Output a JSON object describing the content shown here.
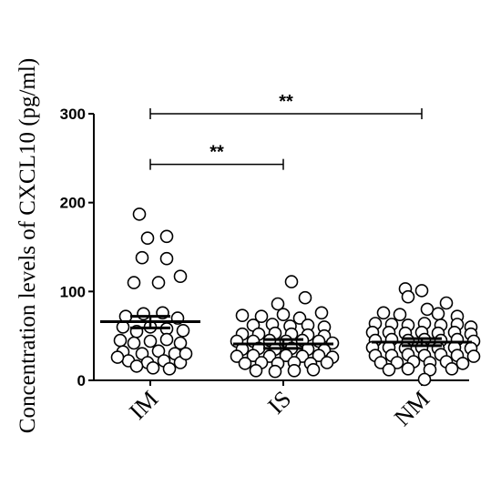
{
  "chart_data": {
    "type": "scatter",
    "ylabel": "Concentration levels of CXCL10 (pg/ml)",
    "xlabel": "",
    "ylim": [
      0,
      300
    ],
    "yticks": [
      0,
      100,
      200,
      300
    ],
    "grid": false,
    "categories": [
      "IM",
      "IS",
      "NM"
    ],
    "groups": [
      {
        "name": "IM",
        "mean": 66,
        "sem_low": 59,
        "sem_high": 72,
        "points": [
          {
            "dx": -0.08,
            "y": 187
          },
          {
            "dx": -0.02,
            "y": 160
          },
          {
            "dx": 0.12,
            "y": 162
          },
          {
            "dx": -0.06,
            "y": 138
          },
          {
            "dx": 0.12,
            "y": 137
          },
          {
            "dx": 0.22,
            "y": 117
          },
          {
            "dx": -0.12,
            "y": 110
          },
          {
            "dx": 0.06,
            "y": 110
          },
          {
            "dx": -0.18,
            "y": 72
          },
          {
            "dx": -0.05,
            "y": 75
          },
          {
            "dx": 0.09,
            "y": 76
          },
          {
            "dx": 0.2,
            "y": 70
          },
          {
            "dx": -0.2,
            "y": 60
          },
          {
            "dx": -0.1,
            "y": 55
          },
          {
            "dx": 0.0,
            "y": 60
          },
          {
            "dx": 0.12,
            "y": 58
          },
          {
            "dx": 0.24,
            "y": 56
          },
          {
            "dx": -0.22,
            "y": 45
          },
          {
            "dx": -0.12,
            "y": 42
          },
          {
            "dx": 0.0,
            "y": 44
          },
          {
            "dx": 0.12,
            "y": 46
          },
          {
            "dx": 0.22,
            "y": 42
          },
          {
            "dx": -0.2,
            "y": 32
          },
          {
            "dx": -0.06,
            "y": 30
          },
          {
            "dx": 0.06,
            "y": 33
          },
          {
            "dx": 0.18,
            "y": 30
          },
          {
            "dx": -0.16,
            "y": 22
          },
          {
            "dx": -0.02,
            "y": 20
          },
          {
            "dx": 0.1,
            "y": 22
          },
          {
            "dx": 0.22,
            "y": 20
          },
          {
            "dx": -0.24,
            "y": 26
          },
          {
            "dx": 0.02,
            "y": 14
          },
          {
            "dx": 0.14,
            "y": 13
          },
          {
            "dx": -0.1,
            "y": 16
          },
          {
            "dx": 0.26,
            "y": 30
          }
        ]
      },
      {
        "name": "IS",
        "mean": 41,
        "sem_low": 36,
        "sem_high": 46,
        "points": [
          {
            "dx": 0.06,
            "y": 111
          },
          {
            "dx": -0.04,
            "y": 86
          },
          {
            "dx": 0.16,
            "y": 93
          },
          {
            "dx": 0.28,
            "y": 76
          },
          {
            "dx": -0.3,
            "y": 73
          },
          {
            "dx": -0.16,
            "y": 72
          },
          {
            "dx": 0.0,
            "y": 74
          },
          {
            "dx": 0.12,
            "y": 70
          },
          {
            "dx": -0.22,
            "y": 62
          },
          {
            "dx": -0.08,
            "y": 63
          },
          {
            "dx": 0.05,
            "y": 61
          },
          {
            "dx": 0.18,
            "y": 62
          },
          {
            "dx": 0.3,
            "y": 60
          },
          {
            "dx": -0.3,
            "y": 52
          },
          {
            "dx": -0.18,
            "y": 52
          },
          {
            "dx": -0.06,
            "y": 53
          },
          {
            "dx": 0.06,
            "y": 52
          },
          {
            "dx": 0.18,
            "y": 51
          },
          {
            "dx": 0.3,
            "y": 50
          },
          {
            "dx": -0.34,
            "y": 44
          },
          {
            "dx": -0.22,
            "y": 44
          },
          {
            "dx": -0.1,
            "y": 45
          },
          {
            "dx": 0.02,
            "y": 44
          },
          {
            "dx": 0.14,
            "y": 45
          },
          {
            "dx": 0.26,
            "y": 44
          },
          {
            "dx": 0.36,
            "y": 42
          },
          {
            "dx": -0.3,
            "y": 35
          },
          {
            "dx": -0.18,
            "y": 36
          },
          {
            "dx": -0.06,
            "y": 35
          },
          {
            "dx": 0.06,
            "y": 36
          },
          {
            "dx": 0.18,
            "y": 35
          },
          {
            "dx": 0.3,
            "y": 34
          },
          {
            "dx": -0.34,
            "y": 27
          },
          {
            "dx": -0.22,
            "y": 28
          },
          {
            "dx": -0.1,
            "y": 27
          },
          {
            "dx": 0.02,
            "y": 28
          },
          {
            "dx": 0.14,
            "y": 27
          },
          {
            "dx": 0.26,
            "y": 28
          },
          {
            "dx": 0.36,
            "y": 26
          },
          {
            "dx": -0.28,
            "y": 19
          },
          {
            "dx": -0.16,
            "y": 20
          },
          {
            "dx": -0.04,
            "y": 19
          },
          {
            "dx": 0.08,
            "y": 20
          },
          {
            "dx": 0.2,
            "y": 19
          },
          {
            "dx": 0.32,
            "y": 20
          },
          {
            "dx": -0.2,
            "y": 11
          },
          {
            "dx": -0.06,
            "y": 10
          },
          {
            "dx": 0.08,
            "y": 11
          },
          {
            "dx": 0.22,
            "y": 12
          }
        ]
      },
      {
        "name": "NM",
        "mean": 43,
        "sem_low": 39,
        "sem_high": 47,
        "points": [
          {
            "dx": -0.12,
            "y": 103
          },
          {
            "dx": 0.0,
            "y": 101
          },
          {
            "dx": -0.1,
            "y": 94
          },
          {
            "dx": 0.18,
            "y": 87
          },
          {
            "dx": 0.04,
            "y": 80
          },
          {
            "dx": -0.28,
            "y": 76
          },
          {
            "dx": -0.16,
            "y": 74
          },
          {
            "dx": 0.12,
            "y": 75
          },
          {
            "dx": 0.26,
            "y": 72
          },
          {
            "dx": -0.34,
            "y": 64
          },
          {
            "dx": -0.22,
            "y": 63
          },
          {
            "dx": -0.1,
            "y": 62
          },
          {
            "dx": 0.02,
            "y": 64
          },
          {
            "dx": 0.14,
            "y": 62
          },
          {
            "dx": 0.26,
            "y": 63
          },
          {
            "dx": 0.36,
            "y": 60
          },
          {
            "dx": -0.36,
            "y": 54
          },
          {
            "dx": -0.24,
            "y": 54
          },
          {
            "dx": -0.12,
            "y": 53
          },
          {
            "dx": 0.0,
            "y": 54
          },
          {
            "dx": 0.12,
            "y": 53
          },
          {
            "dx": 0.24,
            "y": 54
          },
          {
            "dx": 0.36,
            "y": 52
          },
          {
            "dx": -0.34,
            "y": 45
          },
          {
            "dx": -0.22,
            "y": 46
          },
          {
            "dx": -0.1,
            "y": 45
          },
          {
            "dx": 0.02,
            "y": 46
          },
          {
            "dx": 0.14,
            "y": 45
          },
          {
            "dx": 0.26,
            "y": 46
          },
          {
            "dx": 0.38,
            "y": 44
          },
          {
            "dx": -0.36,
            "y": 37
          },
          {
            "dx": -0.24,
            "y": 37
          },
          {
            "dx": -0.12,
            "y": 36
          },
          {
            "dx": 0.0,
            "y": 37
          },
          {
            "dx": 0.12,
            "y": 36
          },
          {
            "dx": 0.24,
            "y": 37
          },
          {
            "dx": 0.36,
            "y": 36
          },
          {
            "dx": -0.34,
            "y": 28
          },
          {
            "dx": -0.22,
            "y": 28
          },
          {
            "dx": -0.1,
            "y": 29
          },
          {
            "dx": 0.02,
            "y": 28
          },
          {
            "dx": 0.14,
            "y": 29
          },
          {
            "dx": 0.26,
            "y": 28
          },
          {
            "dx": 0.38,
            "y": 27
          },
          {
            "dx": -0.3,
            "y": 20
          },
          {
            "dx": -0.18,
            "y": 20
          },
          {
            "dx": -0.06,
            "y": 21
          },
          {
            "dx": 0.06,
            "y": 20
          },
          {
            "dx": 0.18,
            "y": 21
          },
          {
            "dx": 0.3,
            "y": 19
          },
          {
            "dx": -0.24,
            "y": 12
          },
          {
            "dx": -0.1,
            "y": 13
          },
          {
            "dx": 0.06,
            "y": 12
          },
          {
            "dx": 0.22,
            "y": 13
          },
          {
            "dx": 0.02,
            "y": 1
          }
        ]
      }
    ],
    "significance": [
      {
        "from": "IM",
        "to": "IS",
        "y": 243,
        "label": "**"
      },
      {
        "from": "IM",
        "to": "NM",
        "y": 300,
        "label": "**"
      }
    ]
  }
}
